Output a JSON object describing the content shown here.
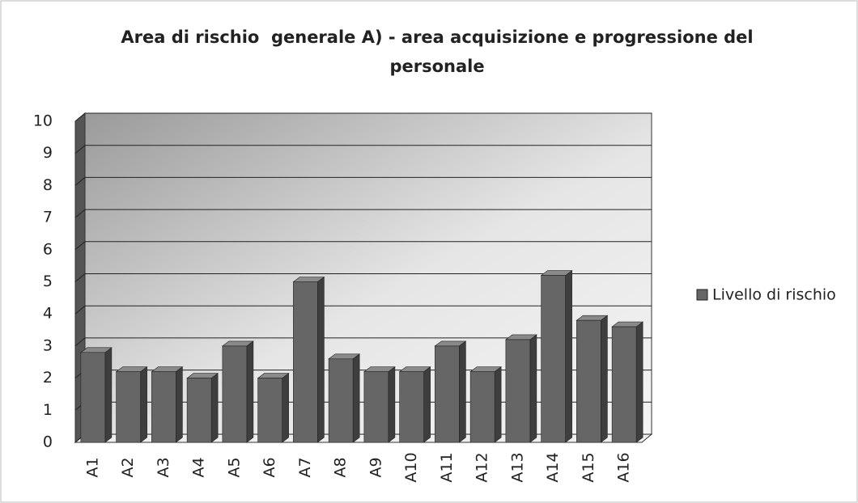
{
  "chart_data": {
    "type": "bar3d",
    "title": "Area di rischio  generale A) - area acquisizione e progressione del personale",
    "categories": [
      "A1",
      "A2",
      "A3",
      "A4",
      "A5",
      "A6",
      "A7",
      "A8",
      "A9",
      "A10",
      "A11",
      "A12",
      "A13",
      "A14",
      "A15",
      "A16"
    ],
    "series": [
      {
        "name": "Livello di rischio",
        "color": "#666666",
        "values": [
          2.8,
          2.2,
          2.2,
          2.0,
          3.0,
          2.0,
          5.0,
          2.6,
          2.2,
          2.2,
          3.0,
          2.2,
          3.2,
          5.2,
          3.8,
          3.6
        ]
      }
    ],
    "ylim": [
      0,
      10
    ],
    "yticks": [
      0,
      1,
      2,
      3,
      4,
      5,
      6,
      7,
      8,
      9,
      10
    ],
    "grid": true,
    "legend": "right"
  }
}
